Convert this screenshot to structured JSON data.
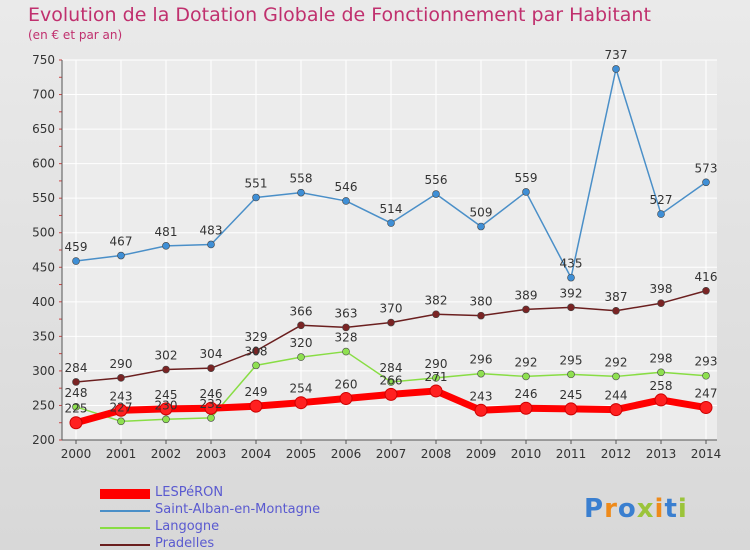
{
  "title": "Evolution de la Dotation Globale de Fonctionnement par Habitant",
  "subtitle": "(en € et par an)",
  "logo": {
    "text": "Proxiti"
  },
  "chart_data": {
    "type": "line",
    "title": "Evolution de la Dotation Globale de Fonctionnement par Habitant",
    "subtitle": "(en € et par an)",
    "x": [
      "2000",
      "2001",
      "2002",
      "2003",
      "2004",
      "2005",
      "2006",
      "2007",
      "2008",
      "2009",
      "2010",
      "2011",
      "2012",
      "2013",
      "2014"
    ],
    "ylim": [
      200,
      750
    ],
    "yticks": [
      200,
      250,
      300,
      350,
      400,
      450,
      500,
      550,
      600,
      650,
      700,
      750
    ],
    "grid": true,
    "legend": "bottom-left",
    "series": [
      {
        "name": "LESPéRON",
        "color": "#ff0000",
        "values": [
          225,
          243,
          245,
          246,
          249,
          254,
          260,
          266,
          271,
          243,
          246,
          245,
          244,
          258,
          247
        ]
      },
      {
        "name": "Saint-Alban-en-Montagne",
        "color": "#4a8fc8",
        "values": [
          459,
          467,
          481,
          483,
          551,
          558,
          546,
          514,
          556,
          509,
          559,
          435,
          737,
          527,
          573
        ]
      },
      {
        "name": "Langogne",
        "color": "#88dd44",
        "values": [
          248,
          227,
          230,
          232,
          308,
          320,
          328,
          284,
          290,
          296,
          292,
          295,
          292,
          298,
          293
        ]
      },
      {
        "name": "Pradelles",
        "color": "#6b1f1f",
        "values": [
          284,
          290,
          302,
          304,
          329,
          366,
          363,
          370,
          382,
          380,
          389,
          392,
          387,
          398,
          416
        ]
      }
    ]
  }
}
